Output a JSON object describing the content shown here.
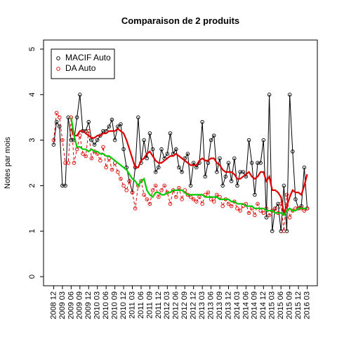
{
  "chart_data": {
    "type": "line",
    "title": "Comparaison de 2 produits",
    "y_label": "Notes par mois",
    "categories": [
      "2008 12",
      null,
      null,
      "2009 03",
      null,
      null,
      "2009 06",
      null,
      null,
      "2009 09",
      null,
      null,
      "2009 12",
      null,
      null,
      "2010 03",
      null,
      null,
      "2010 06",
      null,
      null,
      "2010 09",
      null,
      null,
      "2010 12",
      null,
      null,
      "2011 03",
      null,
      null,
      "2011 06",
      null,
      null,
      "2011 09",
      null,
      null,
      "2011 12",
      null,
      null,
      "2012 03",
      null,
      null,
      "2012 06",
      null,
      null,
      "2012 09",
      null,
      null,
      "2012 12",
      null,
      null,
      "2013 03",
      null,
      null,
      "2013 06",
      null,
      null,
      "2013 09",
      null,
      null,
      "2013 12",
      null,
      null,
      "2014 03",
      null,
      null,
      "2014 06",
      null,
      null,
      "2014 09",
      null,
      null,
      "2014 12",
      null,
      null,
      "2015 03",
      null,
      null,
      "2015 06",
      null,
      null,
      "2015 09",
      null,
      null,
      "2015 12",
      null,
      null,
      "2016 03"
    ],
    "ylim": [
      -0.2,
      5.2
    ],
    "yticks": [
      0,
      1,
      2,
      3,
      4,
      5
    ],
    "legend": "topleft",
    "series": [
      {
        "name": "MACIF Auto",
        "color": "#000000",
        "line_style": "solid",
        "values": [
          2.9,
          3.4,
          3.3,
          2.0,
          2.0,
          3.5,
          3.0,
          3.0,
          3.5,
          4.0,
          3.2,
          3.2,
          3.4,
          3.0,
          2.9,
          3.0,
          3.1,
          3.2,
          3.2,
          3.3,
          3.45,
          3.0,
          3.3,
          3.35,
          2.8,
          2.4,
          2.1,
          1.85,
          2.4,
          3.5,
          2.5,
          3.0,
          2.6,
          3.15,
          2.8,
          2.3,
          2.4,
          2.8,
          2.6,
          2.7,
          3.15,
          2.7,
          2.8,
          2.4,
          2.3,
          2.6,
          2.7,
          2.0,
          2.5,
          2.4,
          2.5,
          3.4,
          2.2,
          2.5,
          3.0,
          3.1,
          2.3,
          2.6,
          2.0,
          2.2,
          2.5,
          2.1,
          2.6,
          2.0,
          2.3,
          2.3,
          2.2,
          3.0,
          2.5,
          1.8,
          2.5,
          2.5,
          3.0,
          1.3,
          4.0,
          1.0,
          1.5,
          1.6,
          1.0,
          2.0,
          1.0,
          4.0,
          2.75,
          1.7,
          1.5,
          1.55,
          2.4,
          1.5
        ],
        "trend": {
          "color": "#dd0000",
          "values": [
            null,
            null,
            null,
            null,
            null,
            null,
            3.25,
            3.1,
            3.1,
            3.2,
            3.2,
            3.15,
            3.1,
            3.05,
            3.05,
            3.1,
            3.1,
            3.15,
            3.15,
            3.2,
            3.2,
            3.2,
            3.25,
            3.2,
            3.15,
            3.0,
            2.8,
            2.6,
            2.4,
            2.4,
            2.55,
            2.6,
            2.7,
            2.75,
            2.65,
            2.55,
            2.5,
            2.5,
            2.55,
            2.6,
            2.65,
            2.65,
            2.7,
            2.65,
            2.6,
            2.55,
            2.5,
            2.45,
            2.45,
            2.45,
            2.55,
            2.6,
            2.55,
            2.55,
            2.6,
            2.6,
            2.5,
            2.45,
            2.35,
            2.3,
            2.3,
            2.3,
            2.25,
            2.15,
            2.15,
            2.2,
            2.25,
            2.3,
            2.2,
            2.15,
            2.2,
            2.3,
            2.3,
            2.1,
            2.2,
            1.9,
            1.9,
            1.85,
            1.75,
            1.4,
            1.55,
            1.75,
            1.9,
            1.85,
            1.85,
            1.8,
            2.0,
            2.25
          ]
        }
      },
      {
        "name": "DA Auto",
        "color": "#dd0000",
        "line_style": "dashed",
        "values": [
          3.0,
          3.6,
          3.5,
          3.0,
          2.5,
          2.5,
          3.5,
          2.5,
          2.8,
          3.1,
          2.7,
          2.65,
          3.2,
          2.6,
          2.75,
          2.7,
          2.55,
          2.85,
          2.4,
          2.6,
          2.35,
          2.5,
          2.3,
          2.15,
          2.0,
          1.9,
          2.1,
          1.85,
          1.5,
          2.0,
          2.1,
          1.8,
          1.7,
          1.6,
          1.9,
          2.0,
          1.75,
          1.9,
          2.0,
          1.85,
          1.6,
          1.9,
          1.75,
          1.95,
          1.7,
          1.9,
          1.8,
          1.75,
          1.7,
          1.65,
          1.75,
          1.6,
          1.8,
          1.85,
          1.7,
          1.65,
          1.8,
          1.75,
          1.55,
          1.7,
          1.6,
          1.55,
          1.65,
          1.5,
          1.45,
          1.55,
          1.6,
          1.4,
          1.5,
          1.35,
          1.6,
          1.45,
          1.4,
          1.5,
          1.35,
          1.45,
          1.5,
          1.4,
          1.6,
          1.0,
          1.8,
          1.3,
          1.45,
          1.5,
          1.5,
          1.5,
          1.45,
          1.5
        ],
        "trend": {
          "color": "#00cc00",
          "values": [
            null,
            null,
            null,
            null,
            null,
            null,
            3.5,
            3.1,
            2.85,
            2.85,
            2.8,
            2.8,
            2.75,
            2.8,
            2.75,
            2.75,
            2.7,
            2.7,
            2.65,
            2.65,
            2.6,
            2.55,
            2.5,
            2.45,
            2.4,
            2.35,
            2.25,
            2.15,
            2.1,
            2.0,
            2.1,
            2.15,
            1.9,
            1.8,
            1.75,
            1.85,
            1.85,
            1.8,
            1.8,
            1.85,
            1.85,
            1.9,
            1.9,
            1.9,
            1.9,
            1.85,
            1.8,
            1.8,
            1.8,
            1.8,
            1.8,
            1.8,
            1.75,
            1.75,
            1.75,
            1.75,
            1.75,
            1.7,
            1.7,
            1.7,
            1.7,
            1.65,
            1.65,
            1.6,
            1.6,
            1.6,
            1.55,
            1.55,
            1.55,
            1.5,
            1.5,
            1.5,
            1.5,
            1.45,
            1.45,
            1.45,
            1.4,
            1.4,
            1.4,
            1.35,
            1.45,
            1.5,
            1.45,
            1.45,
            1.5,
            1.5,
            1.5,
            1.5
          ]
        }
      }
    ]
  }
}
